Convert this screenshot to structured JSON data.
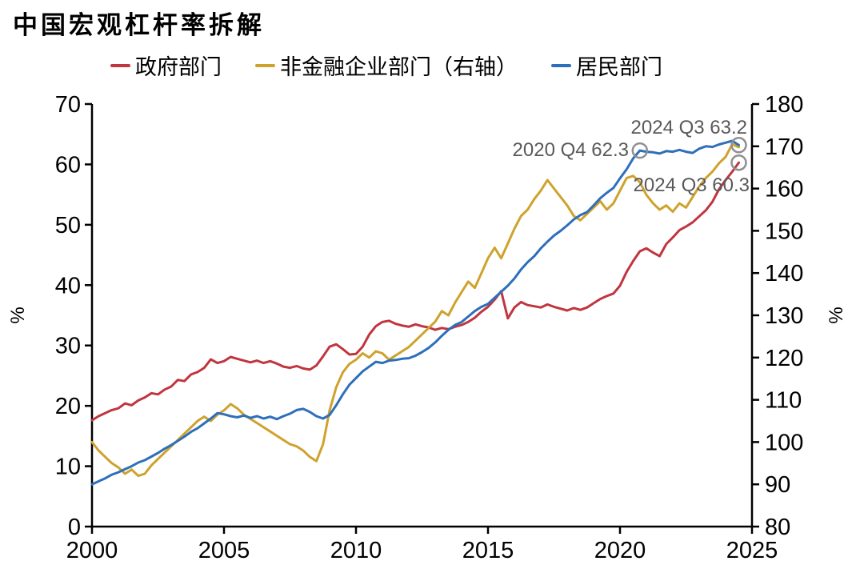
{
  "page": {
    "title": "中国宏观杠杆率拆解"
  },
  "legend": [
    {
      "label": "政府部门",
      "color": "#c1353f"
    },
    {
      "label": "非金融企业部门（右轴）",
      "color": "#cfa22d"
    },
    {
      "label": "居民部门",
      "color": "#2e6fba"
    }
  ],
  "chart_data": {
    "type": "line",
    "title": "中国宏观杠杆率拆解",
    "x_start": 2000,
    "x_step": 0.25,
    "x_ticks": [
      2000,
      2005,
      2010,
      2015,
      2020,
      2025
    ],
    "left_axis": {
      "label": "%",
      "min": 0,
      "max": 70,
      "ticks": [
        0,
        10,
        20,
        30,
        40,
        50,
        60,
        70
      ]
    },
    "right_axis": {
      "label": "%",
      "min": 80,
      "max": 180,
      "ticks": [
        80,
        90,
        100,
        110,
        120,
        130,
        140,
        150,
        160,
        170,
        180
      ]
    },
    "grid": false,
    "legend_position": "top",
    "annotation_color": "#595959",
    "marker_color": "#8f8f8f",
    "series": [
      {
        "name": "政府部门",
        "axis": "left",
        "color": "#c1353f",
        "values": [
          17.6,
          18.3,
          18.8,
          19.3,
          19.6,
          20.4,
          20.1,
          20.9,
          21.4,
          22.1,
          21.9,
          22.7,
          23.2,
          24.3,
          24.1,
          25.2,
          25.6,
          26.3,
          27.7,
          27.1,
          27.4,
          28.1,
          27.8,
          27.5,
          27.2,
          27.5,
          27.1,
          27.4,
          27.0,
          26.5,
          26.3,
          26.6,
          26.2,
          26.0,
          26.7,
          28.2,
          29.8,
          30.2,
          29.4,
          28.5,
          28.6,
          29.8,
          31.8,
          33.2,
          33.9,
          34.1,
          33.6,
          33.3,
          33.1,
          33.5,
          33.2,
          33.0,
          32.6,
          32.9,
          32.7,
          33.1,
          33.4,
          33.9,
          34.6,
          35.6,
          36.4,
          37.6,
          39.0,
          34.5,
          36.3,
          37.2,
          36.7,
          36.5,
          36.3,
          36.8,
          36.4,
          36.1,
          35.8,
          36.2,
          35.9,
          36.3,
          37.0,
          37.7,
          38.2,
          38.6,
          39.9,
          42.2,
          44.0,
          45.6,
          46.1,
          45.4,
          44.8,
          46.8,
          47.9,
          49.1,
          49.7,
          50.4,
          51.4,
          52.4,
          53.8,
          55.9,
          57.4,
          58.8,
          60.3
        ]
      },
      {
        "name": "非金融企业部门（右轴）",
        "axis": "right",
        "color": "#cfa22d",
        "values": [
          100.0,
          98.0,
          96.5,
          95.0,
          94.0,
          92.5,
          93.5,
          92.0,
          92.5,
          94.5,
          96.0,
          97.5,
          99.0,
          100.5,
          102.0,
          103.5,
          105.0,
          106.0,
          105.0,
          106.5,
          107.5,
          109.0,
          108.0,
          106.5,
          105.5,
          104.5,
          103.5,
          102.5,
          101.5,
          100.5,
          99.5,
          99.0,
          98.0,
          96.5,
          95.5,
          99.5,
          107.5,
          113.0,
          116.5,
          118.5,
          119.5,
          121.0,
          120.0,
          121.5,
          121.0,
          119.5,
          120.5,
          121.5,
          122.5,
          124.0,
          125.5,
          127.0,
          128.5,
          131.0,
          130.0,
          133.0,
          135.5,
          138.0,
          136.5,
          140.0,
          143.5,
          146.0,
          143.5,
          147.0,
          150.5,
          153.5,
          155.0,
          157.5,
          159.5,
          162.0,
          160.0,
          158.0,
          156.0,
          153.5,
          152.5,
          154.0,
          155.5,
          157.0,
          155.0,
          156.5,
          159.5,
          162.5,
          163.0,
          161.5,
          158.5,
          156.5,
          155.0,
          156.0,
          154.5,
          156.5,
          155.5,
          158.0,
          160.5,
          162.5,
          164.0,
          166.0,
          167.5,
          170.5,
          169.8
        ]
      },
      {
        "name": "居民部门",
        "axis": "left",
        "color": "#2e6fba",
        "values": [
          7.0,
          7.5,
          8.0,
          8.6,
          9.0,
          9.5,
          10.0,
          10.6,
          11.0,
          11.6,
          12.2,
          12.9,
          13.5,
          14.2,
          14.9,
          15.7,
          16.3,
          17.1,
          17.9,
          18.8,
          18.6,
          18.3,
          18.1,
          18.4,
          18.0,
          18.3,
          17.9,
          18.2,
          17.8,
          18.3,
          18.7,
          19.3,
          19.5,
          19.0,
          18.3,
          17.9,
          18.5,
          20.1,
          21.9,
          23.5,
          24.6,
          25.7,
          26.5,
          27.3,
          27.1,
          27.5,
          27.6,
          27.8,
          27.9,
          28.3,
          28.9,
          29.6,
          30.5,
          31.6,
          32.6,
          33.4,
          33.9,
          34.8,
          35.7,
          36.4,
          36.9,
          37.9,
          38.9,
          39.9,
          41.1,
          42.6,
          43.8,
          44.8,
          46.1,
          47.2,
          48.2,
          49.0,
          49.9,
          50.9,
          51.6,
          52.1,
          53.2,
          54.4,
          55.3,
          56.1,
          57.7,
          59.2,
          61.0,
          62.3,
          62.1,
          62.0,
          61.8,
          62.2,
          62.1,
          62.4,
          62.1,
          61.9,
          62.6,
          63.0,
          62.9,
          63.3,
          63.6,
          63.9,
          63.2
        ]
      }
    ],
    "annotations": [
      {
        "label": "2020 Q4 62.3",
        "x": 2020.75,
        "value": 62.3,
        "axis": "left"
      },
      {
        "label": "2024 Q3 63.2",
        "x": 2024.5,
        "value": 63.2,
        "axis": "left"
      },
      {
        "label": "2024 Q3 60.3",
        "x": 2024.5,
        "value": 60.3,
        "axis": "left"
      }
    ]
  }
}
